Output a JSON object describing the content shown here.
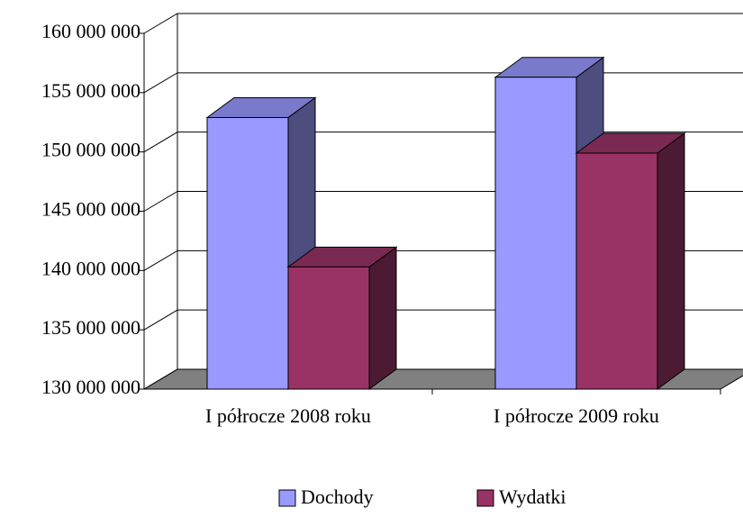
{
  "chart_data": {
    "type": "bar3d",
    "categories": [
      "I półrocze 2008 roku",
      "I półrocze 2009 roku"
    ],
    "series": [
      {
        "name": "Dochody",
        "color": "#9999ff",
        "values": [
          152900000,
          156300000
        ]
      },
      {
        "name": "Wydatki",
        "color": "#993366",
        "values": [
          140300000,
          149900000
        ]
      }
    ],
    "ylim": [
      130000000,
      160000000
    ],
    "yticks": [
      {
        "value": 130000000,
        "label": "130 000 000"
      },
      {
        "value": 135000000,
        "label": "135 000 000"
      },
      {
        "value": 140000000,
        "label": "140 000 000"
      },
      {
        "value": 145000000,
        "label": "145 000 000"
      },
      {
        "value": 150000000,
        "label": "150 000 000"
      },
      {
        "value": 155000000,
        "label": "155 000 000"
      },
      {
        "value": 160000000,
        "label": "160 000 000"
      }
    ],
    "grid": true,
    "legend": "bottom"
  }
}
